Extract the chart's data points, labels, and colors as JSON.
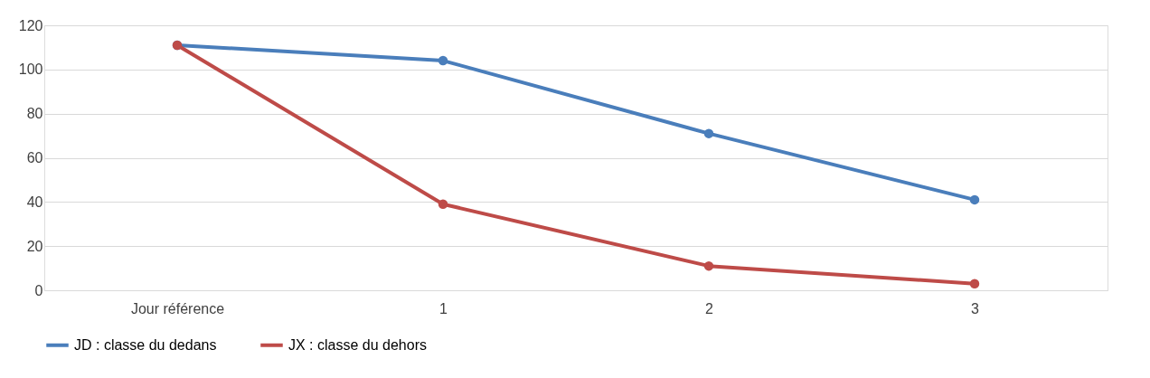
{
  "chart_data": {
    "type": "line",
    "categories": [
      "Jour référence",
      "1",
      "2",
      "3"
    ],
    "series": [
      {
        "name": "JD : classe du dedans",
        "color": "#4a7ebb",
        "values": [
          111,
          104,
          71,
          41
        ]
      },
      {
        "name": "JX : classe du dehors",
        "color": "#be4b48",
        "values": [
          111,
          39,
          11,
          3
        ]
      }
    ],
    "ylim": [
      0,
      120
    ],
    "yticks": [
      0,
      20,
      40,
      60,
      80,
      100,
      120
    ],
    "grid": "y",
    "legend": "bottom",
    "marker": "circle",
    "line_style": "solid"
  }
}
